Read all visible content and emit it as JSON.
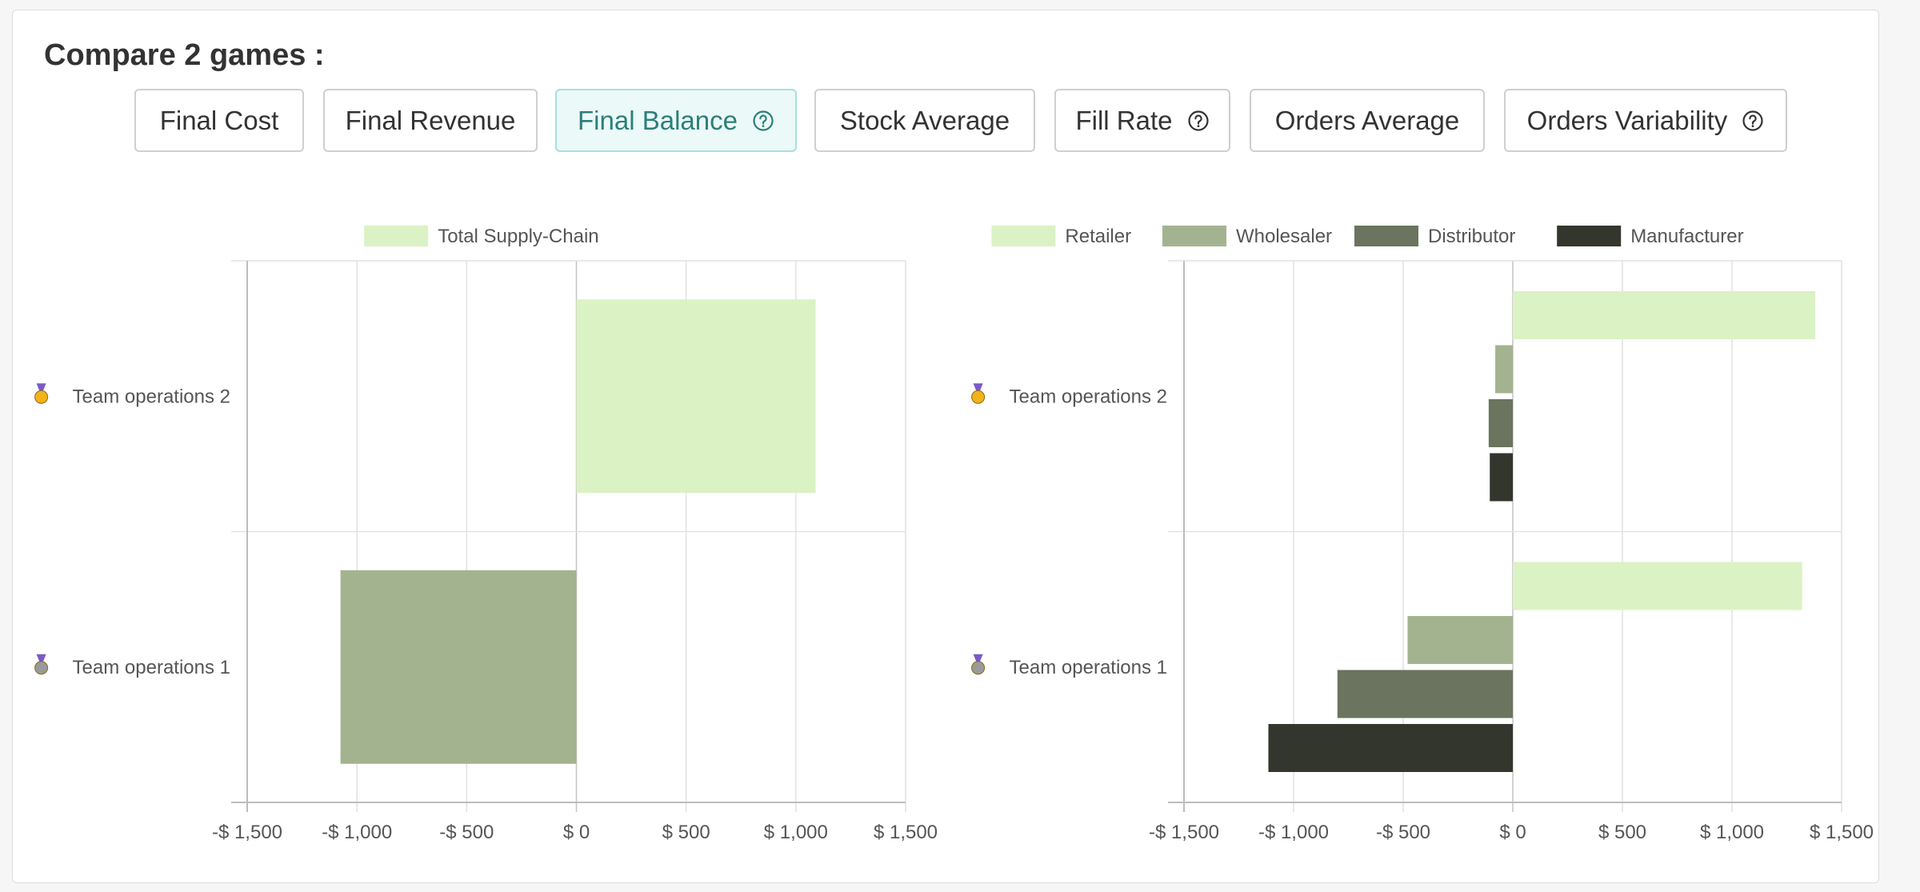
{
  "header": {
    "title": "Compare 2 games :"
  },
  "tabs": [
    {
      "label": "Final Cost",
      "help": false,
      "active": false
    },
    {
      "label": "Final Revenue",
      "help": false,
      "active": false
    },
    {
      "label": "Final Balance",
      "help": true,
      "active": true
    },
    {
      "label": "Stock Average",
      "help": false,
      "active": false
    },
    {
      "label": "Fill Rate",
      "help": true,
      "active": false
    },
    {
      "label": "Orders Average",
      "help": false,
      "active": false
    },
    {
      "label": "Orders Variability",
      "help": true,
      "active": false
    }
  ],
  "colors": {
    "accent": "#2c7f79",
    "grid": "#e2e2e2",
    "axis": "#bdbdbd",
    "medal_gold": "#f2b21a",
    "medal_silver": "#9a9a9a"
  },
  "chart_data": [
    {
      "type": "bar",
      "orientation": "horizontal",
      "categories": [
        "Team operations 2",
        "Team operations 1"
      ],
      "category_medals": [
        "gold-medal-icon",
        "silver-medal-icon"
      ],
      "series": [
        {
          "name": "Total Supply-Chain",
          "color": "#dbf2c4",
          "values": [
            1090,
            -1075
          ]
        }
      ],
      "bar_colors": [
        "#dbf2c4",
        "#a4b38f"
      ],
      "xlim": [
        -1500,
        1500
      ],
      "xticks": [
        -1500,
        -1000,
        -500,
        0,
        500,
        1000,
        1500
      ],
      "tick_labels": [
        "-$ 1,500",
        "-$ 1,000",
        "-$ 500",
        "$ 0",
        "$ 500",
        "$ 1,000",
        "$ 1,500"
      ],
      "legend_position": "top",
      "grid": true
    },
    {
      "type": "bar",
      "orientation": "horizontal",
      "categories": [
        "Team operations 2",
        "Team operations 1"
      ],
      "category_medals": [
        "gold-medal-icon",
        "silver-medal-icon"
      ],
      "series": [
        {
          "name": "Retailer",
          "color": "#dbf2c4",
          "values": [
            1380,
            1320
          ]
        },
        {
          "name": "Wholesaler",
          "color": "#a4b38f",
          "values": [
            -80,
            -480
          ]
        },
        {
          "name": "Distributor",
          "color": "#6a745e",
          "values": [
            -110,
            -800
          ]
        },
        {
          "name": "Manufacturer",
          "color": "#32362d",
          "values": [
            -105,
            -1115
          ]
        }
      ],
      "xlim": [
        -1500,
        1500
      ],
      "xticks": [
        -1500,
        -1000,
        -500,
        0,
        500,
        1000,
        1500
      ],
      "tick_labels": [
        "-$ 1,500",
        "-$ 1,000",
        "-$ 500",
        "$ 0",
        "$ 500",
        "$ 1,000",
        "$ 1,500"
      ],
      "legend_position": "top",
      "grid": true
    }
  ]
}
